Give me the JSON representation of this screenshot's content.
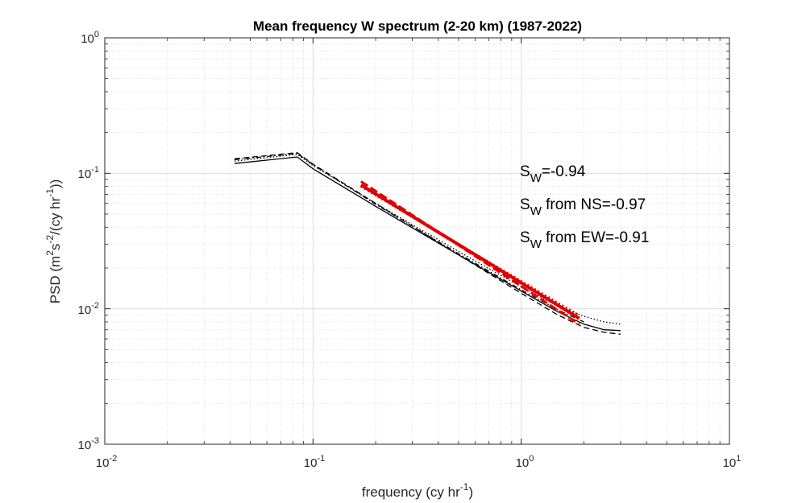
{
  "chart_data": {
    "type": "line",
    "title": "Mean frequency W spectrum (2-20 km) (1987-2022)",
    "xlabel": {
      "prefix": "frequency (cy hr",
      "sup": "-1",
      "suffix": ")"
    },
    "ylabel": {
      "p1": "PSD (m",
      "s1": "2",
      "p2": "s",
      "s2": "-2",
      "p3": "/(cy hr",
      "s3": "-1",
      "p4": "))"
    },
    "xscale": "log",
    "yscale": "log",
    "xlim": [
      0.01,
      10
    ],
    "ylim": [
      0.001,
      1
    ],
    "grid": true,
    "minor_grid": true,
    "xticks": [
      {
        "base": "10",
        "exp": "-2",
        "value": 0.01
      },
      {
        "base": "10",
        "exp": "-1",
        "value": 0.1
      },
      {
        "base": "10",
        "exp": "0",
        "value": 1
      },
      {
        "base": "10",
        "exp": "1",
        "value": 10
      }
    ],
    "yticks": [
      {
        "base": "10",
        "exp": "-3",
        "value": 0.001
      },
      {
        "base": "10",
        "exp": "-2",
        "value": 0.01
      },
      {
        "base": "10",
        "exp": "-1",
        "value": 0.1
      },
      {
        "base": "10",
        "exp": "0",
        "value": 1
      }
    ],
    "annotations": [
      {
        "main": "S",
        "sub": "W",
        "text": "=-0.94"
      },
      {
        "main": "S",
        "sub": "W",
        "text": " from NS=-0.97"
      },
      {
        "main": "S",
        "sub": "W",
        "text": " from EW=-0.91"
      }
    ],
    "series": [
      {
        "style": "solid",
        "color": "#000000",
        "x": [
          0.042,
          0.084,
          0.1,
          0.2,
          0.5,
          1.0,
          1.5,
          2.0,
          2.5,
          3.0
        ],
        "y": [
          0.118,
          0.132,
          0.108,
          0.057,
          0.025,
          0.0135,
          0.0095,
          0.0077,
          0.007,
          0.0069
        ]
      },
      {
        "style": "dashed",
        "color": "#000000",
        "x": [
          0.042,
          0.084,
          0.1,
          0.2,
          0.5,
          1.0,
          1.5,
          2.0,
          2.5,
          3.0
        ],
        "y": [
          0.128,
          0.142,
          0.117,
          0.06,
          0.025,
          0.013,
          0.009,
          0.0073,
          0.0067,
          0.0065
        ]
      },
      {
        "style": "dotted",
        "color": "#000000",
        "x": [
          0.042,
          0.084,
          0.1,
          0.2,
          0.5,
          1.0,
          1.5,
          2.0,
          2.5,
          3.0
        ],
        "y": [
          0.123,
          0.138,
          0.114,
          0.06,
          0.0265,
          0.0145,
          0.0105,
          0.0088,
          0.008,
          0.0077
        ]
      },
      {
        "style": "dashdot",
        "color": "#000000",
        "x": [
          0.042,
          0.084,
          0.1,
          0.2,
          0.5,
          1.0,
          1.5,
          2.0
        ],
        "y": [
          0.126,
          0.14,
          0.116,
          0.059,
          0.0255,
          0.0138,
          0.0098,
          0.008
        ]
      }
    ],
    "fits": [
      {
        "style": "solid",
        "color": "#e00000",
        "x": [
          0.17,
          1.9
        ],
        "y": [
          0.082,
          0.0085
        ]
      },
      {
        "style": "dashed",
        "color": "#e00000",
        "x": [
          0.17,
          1.9
        ],
        "y": [
          0.087,
          0.0077
        ]
      },
      {
        "style": "dotted",
        "color": "#e00000",
        "x": [
          0.17,
          1.9
        ],
        "y": [
          0.08,
          0.0089
        ]
      }
    ]
  }
}
